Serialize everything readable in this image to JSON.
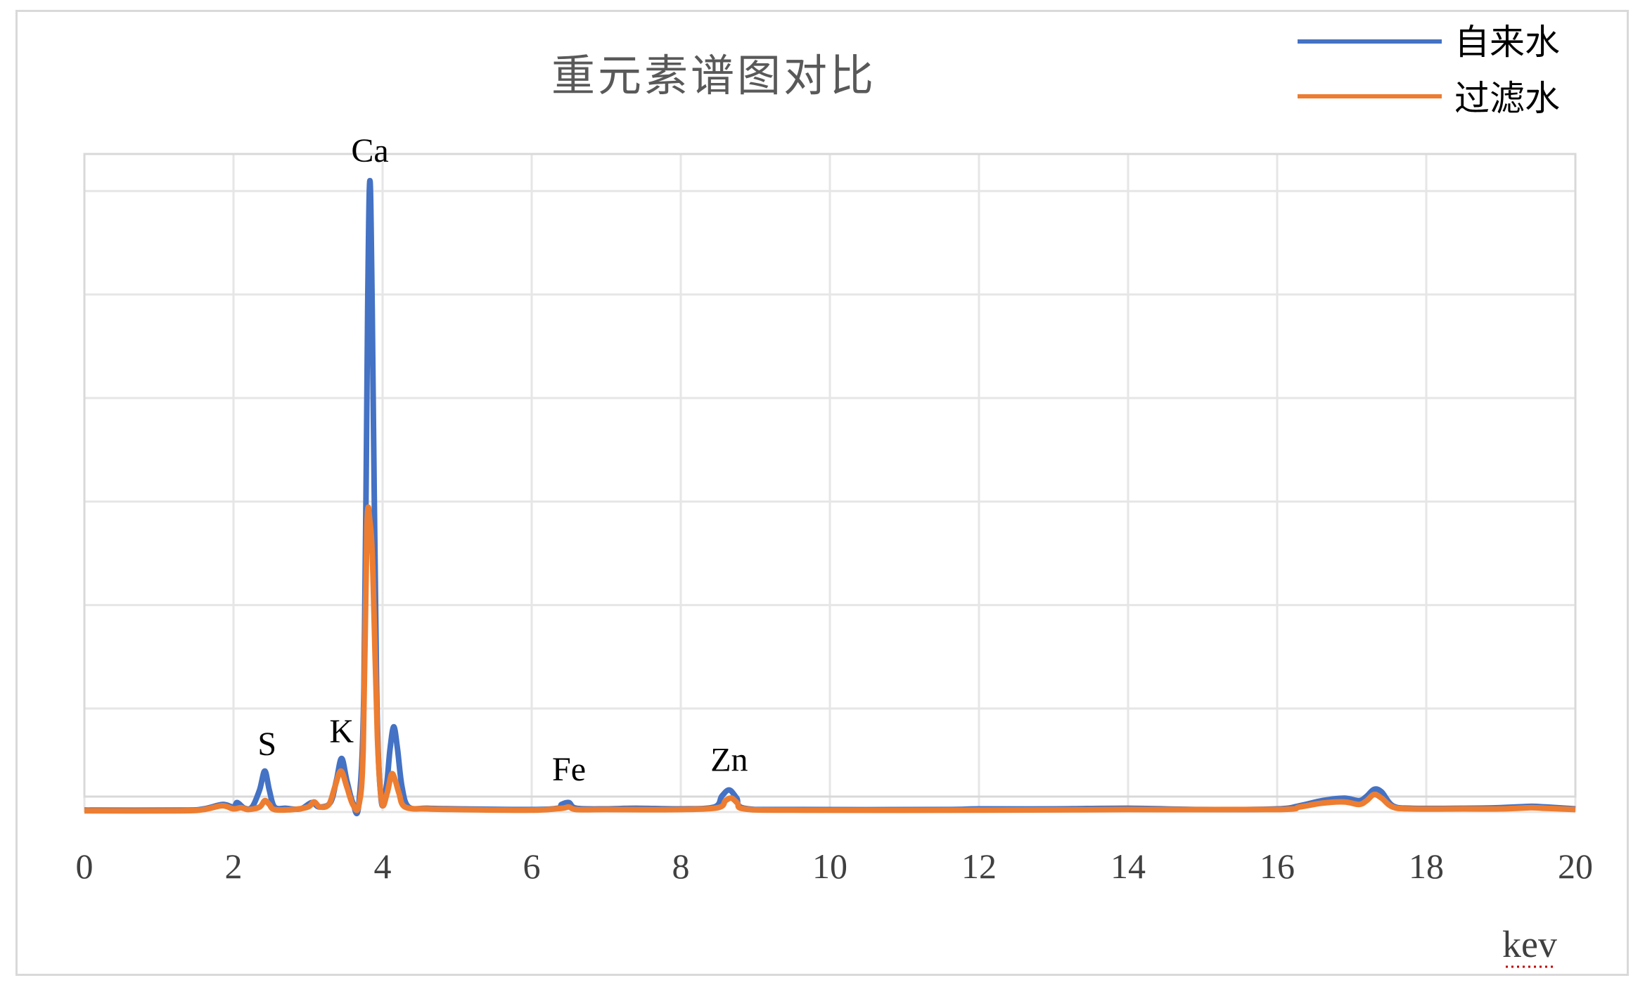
{
  "chart_data": {
    "type": "line",
    "title": "重元素谱图对比",
    "xlabel": "kev",
    "ylabel": "",
    "xlim": [
      0,
      20
    ],
    "ylim": [
      0,
      100
    ],
    "x_ticks": [
      "0",
      "2",
      "4",
      "6",
      "8",
      "10",
      "12",
      "14",
      "16",
      "18",
      "20"
    ],
    "grid": true,
    "legend_position": "top-right",
    "series": [
      {
        "name": "自来水",
        "color": "#4472c4",
        "points": [
          [
            0,
            0.3
          ],
          [
            1.3,
            0.3
          ],
          [
            1.6,
            0.5
          ],
          [
            1.85,
            1.2
          ],
          [
            2.0,
            0.8
          ],
          [
            2.05,
            1.5
          ],
          [
            2.15,
            0.6
          ],
          [
            2.25,
            0.8
          ],
          [
            2.35,
            3.5
          ],
          [
            2.42,
            6.5
          ],
          [
            2.48,
            3.5
          ],
          [
            2.55,
            0.8
          ],
          [
            2.7,
            0.6
          ],
          [
            2.9,
            0.5
          ],
          [
            3.05,
            1.5
          ],
          [
            3.15,
            0.8
          ],
          [
            3.3,
            1.5
          ],
          [
            3.38,
            5.0
          ],
          [
            3.45,
            8.5
          ],
          [
            3.52,
            5.0
          ],
          [
            3.6,
            1.5
          ],
          [
            3.68,
            1.2
          ],
          [
            3.75,
            20
          ],
          [
            3.8,
            80
          ],
          [
            3.83,
            100
          ],
          [
            3.86,
            80
          ],
          [
            3.92,
            20
          ],
          [
            3.98,
            2.0
          ],
          [
            4.05,
            4.0
          ],
          [
            4.1,
            10
          ],
          [
            4.15,
            13.5
          ],
          [
            4.2,
            10
          ],
          [
            4.26,
            4.0
          ],
          [
            4.35,
            0.8
          ],
          [
            4.6,
            0.6
          ],
          [
            5.0,
            0.5
          ],
          [
            6.0,
            0.4
          ],
          [
            6.35,
            0.6
          ],
          [
            6.4,
            1.2
          ],
          [
            6.5,
            1.5
          ],
          [
            6.6,
            0.6
          ],
          [
            7.0,
            0.5
          ],
          [
            7.4,
            0.6
          ],
          [
            8.0,
            0.5
          ],
          [
            8.45,
            0.8
          ],
          [
            8.55,
            2.5
          ],
          [
            8.65,
            3.5
          ],
          [
            8.75,
            2.2
          ],
          [
            8.85,
            0.6
          ],
          [
            9.5,
            0.4
          ],
          [
            11.5,
            0.4
          ],
          [
            12.0,
            0.5
          ],
          [
            13.0,
            0.5
          ],
          [
            14.0,
            0.6
          ],
          [
            15.0,
            0.4
          ],
          [
            16.0,
            0.5
          ],
          [
            16.3,
            1.0
          ],
          [
            16.6,
            1.8
          ],
          [
            16.9,
            2.2
          ],
          [
            17.1,
            1.8
          ],
          [
            17.2,
            2.5
          ],
          [
            17.3,
            3.6
          ],
          [
            17.4,
            3.2
          ],
          [
            17.55,
            1.0
          ],
          [
            17.8,
            0.6
          ],
          [
            18.5,
            0.6
          ],
          [
            19.0,
            0.7
          ],
          [
            19.4,
            0.9
          ],
          [
            19.6,
            0.8
          ],
          [
            20.0,
            0.5
          ]
        ]
      },
      {
        "name": "过滤水",
        "color": "#ed7d31",
        "points": [
          [
            0,
            0.2
          ],
          [
            1.3,
            0.2
          ],
          [
            1.6,
            0.4
          ],
          [
            1.85,
            1.0
          ],
          [
            2.0,
            0.5
          ],
          [
            2.1,
            0.7
          ],
          [
            2.2,
            0.4
          ],
          [
            2.35,
            0.8
          ],
          [
            2.42,
            1.8
          ],
          [
            2.48,
            1.2
          ],
          [
            2.55,
            0.4
          ],
          [
            2.8,
            0.4
          ],
          [
            3.0,
            0.8
          ],
          [
            3.08,
            1.6
          ],
          [
            3.16,
            0.8
          ],
          [
            3.28,
            1.2
          ],
          [
            3.36,
            4.0
          ],
          [
            3.44,
            6.5
          ],
          [
            3.52,
            4.0
          ],
          [
            3.6,
            1.2
          ],
          [
            3.68,
            1.0
          ],
          [
            3.74,
            10
          ],
          [
            3.79,
            45
          ],
          [
            3.83,
            46
          ],
          [
            3.87,
            38
          ],
          [
            3.93,
            12
          ],
          [
            3.99,
            1.5
          ],
          [
            4.06,
            3.0
          ],
          [
            4.12,
            6.0
          ],
          [
            4.17,
            5.0
          ],
          [
            4.22,
            3.0
          ],
          [
            4.3,
            0.8
          ],
          [
            4.6,
            0.5
          ],
          [
            5.0,
            0.4
          ],
          [
            6.0,
            0.3
          ],
          [
            6.4,
            0.6
          ],
          [
            6.5,
            0.8
          ],
          [
            6.6,
            0.4
          ],
          [
            7.0,
            0.4
          ],
          [
            8.0,
            0.4
          ],
          [
            8.5,
            0.7
          ],
          [
            8.6,
            1.8
          ],
          [
            8.68,
            2.2
          ],
          [
            8.76,
            1.4
          ],
          [
            8.85,
            0.5
          ],
          [
            9.5,
            0.3
          ],
          [
            12.0,
            0.3
          ],
          [
            14.0,
            0.4
          ],
          [
            16.0,
            0.4
          ],
          [
            16.3,
            0.8
          ],
          [
            16.6,
            1.4
          ],
          [
            16.9,
            1.6
          ],
          [
            17.1,
            1.2
          ],
          [
            17.2,
            1.8
          ],
          [
            17.3,
            2.8
          ],
          [
            17.4,
            2.2
          ],
          [
            17.55,
            0.8
          ],
          [
            17.8,
            0.5
          ],
          [
            18.5,
            0.5
          ],
          [
            19.0,
            0.5
          ],
          [
            19.4,
            0.7
          ],
          [
            19.6,
            0.6
          ],
          [
            20.0,
            0.4
          ]
        ]
      }
    ],
    "annotations": [
      {
        "label": "S",
        "x": 2.45,
        "y": 7
      },
      {
        "label": "K",
        "x": 3.45,
        "y": 9
      },
      {
        "label": "Ca",
        "x": 3.83,
        "y": 101
      },
      {
        "label": "Fe",
        "x": 6.5,
        "y": 3
      },
      {
        "label": "Zn",
        "x": 8.65,
        "y": 4.5
      }
    ]
  }
}
